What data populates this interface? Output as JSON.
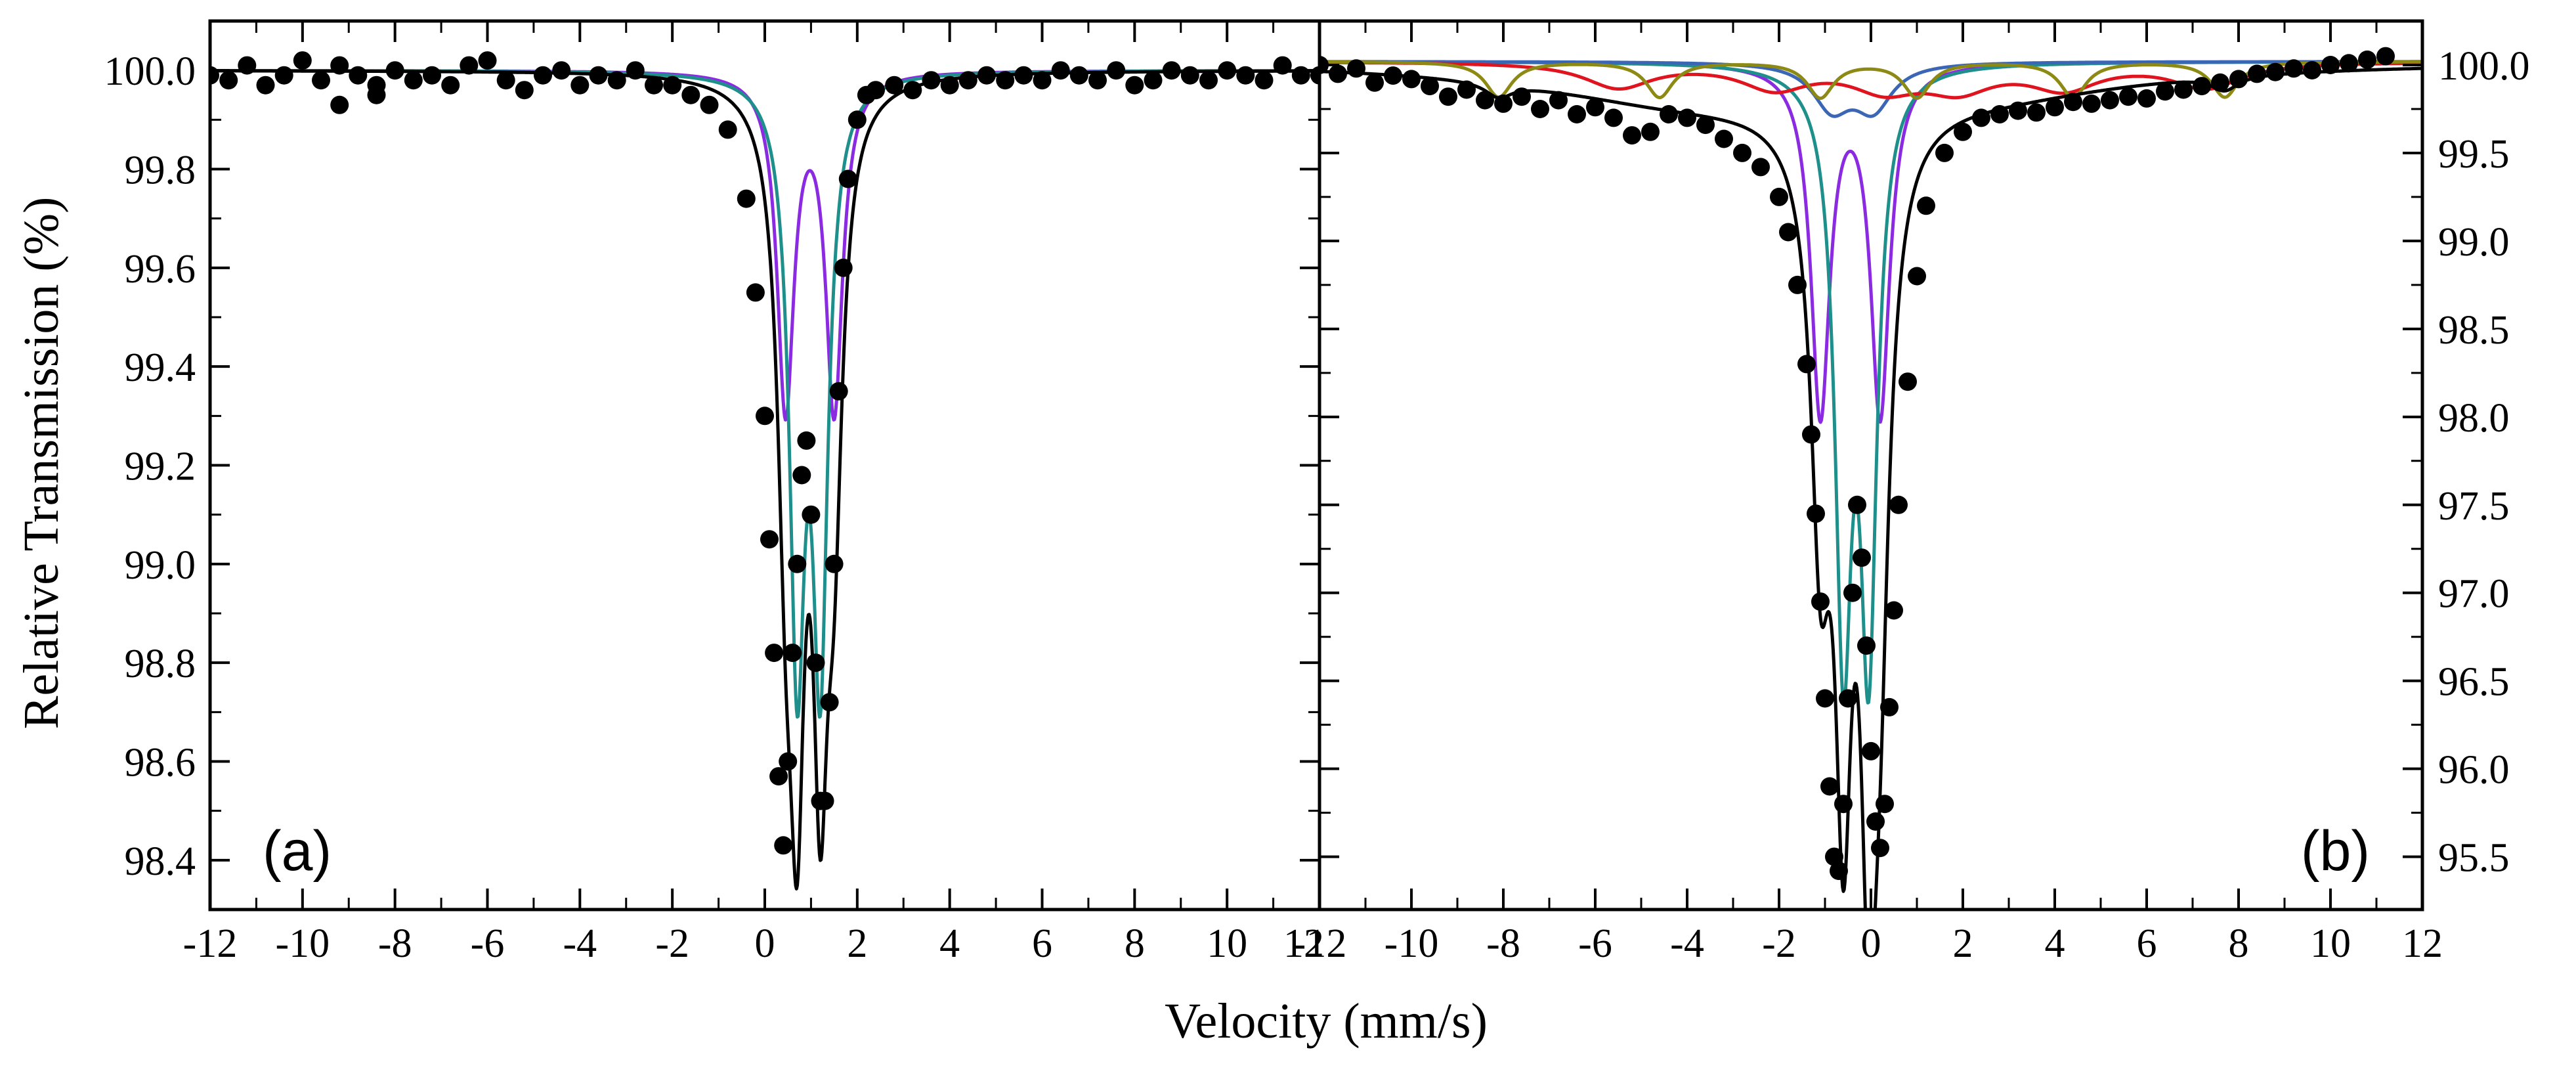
{
  "figure": {
    "shared_xlabel": "Velocity (mm/s)",
    "ylabel": "Relative Transmission (%)"
  },
  "colors": {
    "data": "#000000",
    "envelope": "#000000",
    "doublet_purple": "#8a2be2",
    "doublet_teal": "#1f8f8c",
    "doublet_blue": "#3a66b5",
    "sextet_red": "#e0141e",
    "sextet_olive": "#8c8a14"
  },
  "chart_data": [
    {
      "type": "scatter",
      "panel": "(a)",
      "title": "",
      "xlabel": "Velocity (mm/s)",
      "ylabel": "Relative Transmission (%)",
      "xlim": [
        -12,
        12
      ],
      "ylim": [
        98.3,
        100.1
      ],
      "x_ticks": [
        -12,
        -10,
        -8,
        -6,
        -4,
        -2,
        0,
        2,
        4,
        6,
        8,
        10,
        12
      ],
      "x_tick_labels": [
        "-12",
        "-10",
        "-8",
        "-6",
        "-4",
        "-2",
        "0",
        "2",
        "4",
        "6",
        "8",
        "10",
        "12"
      ],
      "y_ticks": [
        98.4,
        98.6,
        98.8,
        99.0,
        99.2,
        99.4,
        99.6,
        99.8,
        100.0
      ],
      "y_tick_labels": [
        "98.4",
        "98.6",
        "98.8",
        "99.0",
        "99.2",
        "99.4",
        "99.6",
        "99.8",
        "100.0"
      ],
      "y_axis_side": "left",
      "grid": false,
      "experimental_data": {
        "name": "Experimental",
        "x": [
          -12.0,
          -11.6,
          -11.2,
          -10.8,
          -10.4,
          -10.0,
          -9.6,
          -9.2,
          -8.8,
          -8.4,
          -8.0,
          -7.6,
          -7.2,
          -6.8,
          -6.4,
          -6.0,
          -5.6,
          -5.2,
          -4.8,
          -4.4,
          -4.0,
          -3.6,
          -3.2,
          -2.8,
          -2.4,
          -2.0,
          -1.6,
          -1.2,
          -0.8,
          -0.4,
          -0.2,
          0.0,
          0.1,
          0.2,
          0.3,
          0.4,
          0.5,
          0.6,
          0.7,
          0.8,
          0.9,
          1.0,
          1.1,
          1.2,
          1.3,
          1.4,
          1.5,
          1.6,
          1.7,
          1.8,
          2.0,
          2.2,
          2.4,
          2.8,
          3.2,
          3.6,
          4.0,
          4.4,
          4.8,
          5.2,
          5.6,
          6.0,
          6.4,
          6.8,
          7.2,
          7.6,
          8.0,
          8.4,
          8.8,
          9.2,
          9.6,
          10.0,
          10.4,
          10.8,
          11.2,
          11.6,
          12.0,
          -9.2,
          -8.4
        ],
        "y": [
          99.99,
          99.98,
          100.01,
          99.97,
          99.99,
          100.02,
          99.98,
          100.01,
          99.99,
          99.97,
          100.0,
          99.98,
          99.99,
          99.97,
          100.01,
          100.02,
          99.98,
          99.96,
          99.99,
          100.0,
          99.97,
          99.99,
          99.98,
          100.0,
          99.97,
          99.97,
          99.95,
          99.93,
          99.88,
          99.74,
          99.55,
          99.3,
          99.05,
          98.82,
          98.57,
          98.43,
          98.6,
          98.82,
          99.0,
          99.18,
          99.25,
          99.1,
          98.8,
          98.52,
          98.52,
          98.72,
          99.0,
          99.35,
          99.6,
          99.78,
          99.9,
          99.95,
          99.96,
          99.97,
          99.96,
          99.98,
          99.97,
          99.98,
          99.99,
          99.98,
          99.99,
          99.98,
          100.0,
          99.99,
          99.98,
          100.0,
          99.97,
          99.98,
          100.0,
          99.99,
          99.98,
          100.0,
          99.99,
          99.98,
          100.01,
          99.99,
          99.99,
          99.93,
          99.95
        ]
      },
      "components": [
        {
          "name": "Doublet (purple)",
          "kind": "doublet",
          "color": "#8a2be2",
          "centers": [
            0.45,
            1.5
          ],
          "hwhm": 0.22,
          "depth": 0.68,
          "baseline": 100.0
        },
        {
          "name": "Doublet (teal)",
          "kind": "doublet",
          "color": "#1f8f8c",
          "centers": [
            0.7,
            1.2
          ],
          "hwhm": 0.2,
          "depth": 1.15,
          "baseline": 100.0
        },
        {
          "name": "Fit envelope",
          "kind": "envelope",
          "color": "#000000",
          "centers": [
            0.45,
            0.7,
            1.2,
            1.5
          ],
          "hwhm": [
            0.22,
            0.2,
            0.2,
            0.22
          ],
          "depth": [
            0.68,
            1.15,
            1.15,
            0.68
          ],
          "baseline": 100.0
        }
      ],
      "annotation": "(a)"
    },
    {
      "type": "scatter",
      "panel": "(b)",
      "title": "",
      "xlabel": "Velocity (mm/s)",
      "ylabel": "",
      "xlim": [
        -12,
        12
      ],
      "ylim": [
        95.2,
        100.25
      ],
      "x_ticks": [
        -12,
        -10,
        -8,
        -6,
        -4,
        -2,
        0,
        2,
        4,
        6,
        8,
        10,
        12
      ],
      "x_tick_labels": [
        "-12",
        "-10",
        "-8",
        "-6",
        "-4",
        "-2",
        "0",
        "2",
        "4",
        "6",
        "8",
        "10",
        "12"
      ],
      "y_ticks": [
        95.5,
        96.0,
        96.5,
        97.0,
        97.5,
        98.0,
        98.5,
        99.0,
        99.5,
        100.0
      ],
      "y_tick_labels": [
        "95.5",
        "96.0",
        "96.5",
        "97.0",
        "97.5",
        "98.0",
        "98.5",
        "99.0",
        "99.5",
        "100.0"
      ],
      "y_axis_side": "right",
      "grid": false,
      "experimental_data": {
        "name": "Experimental",
        "x": [
          -12.0,
          -11.6,
          -11.2,
          -10.8,
          -10.4,
          -10.0,
          -9.6,
          -9.2,
          -8.8,
          -8.4,
          -8.0,
          -7.6,
          -7.2,
          -6.8,
          -6.4,
          -6.0,
          -5.6,
          -5.2,
          -4.8,
          -4.4,
          -4.0,
          -3.6,
          -3.2,
          -2.8,
          -2.4,
          -2.0,
          -1.8,
          -1.6,
          -1.4,
          -1.3,
          -1.2,
          -1.1,
          -1.0,
          -0.9,
          -0.8,
          -0.7,
          -0.6,
          -0.5,
          -0.4,
          -0.3,
          -0.2,
          -0.1,
          0.0,
          0.1,
          0.2,
          0.3,
          0.4,
          0.5,
          0.6,
          0.8,
          1.0,
          1.2,
          1.6,
          2.0,
          2.4,
          2.8,
          3.2,
          3.6,
          4.0,
          4.4,
          4.8,
          5.2,
          5.6,
          6.0,
          6.4,
          6.8,
          7.2,
          7.6,
          8.0,
          8.4,
          8.8,
          9.2,
          9.6,
          10.0,
          10.4,
          10.8,
          11.2
        ],
        "y": [
          100.0,
          99.95,
          99.98,
          99.9,
          99.94,
          99.92,
          99.88,
          99.82,
          99.86,
          99.8,
          99.78,
          99.82,
          99.75,
          99.8,
          99.72,
          99.76,
          99.7,
          99.6,
          99.62,
          99.72,
          99.7,
          99.66,
          99.58,
          99.5,
          99.42,
          99.25,
          99.05,
          98.75,
          98.3,
          97.9,
          97.45,
          96.95,
          96.4,
          95.9,
          95.5,
          95.42,
          95.8,
          96.4,
          97.0,
          97.5,
          97.2,
          96.7,
          96.1,
          95.7,
          95.55,
          95.8,
          96.35,
          96.9,
          97.5,
          98.2,
          98.8,
          99.2,
          99.5,
          99.62,
          99.7,
          99.72,
          99.74,
          99.73,
          99.76,
          99.79,
          99.78,
          99.8,
          99.82,
          99.81,
          99.85,
          99.86,
          99.88,
          99.9,
          99.92,
          99.95,
          99.96,
          99.98,
          99.97,
          100.0,
          100.01,
          100.03,
          100.05
        ]
      },
      "components": [
        {
          "name": "Doublet (purple)",
          "kind": "doublet",
          "color": "#8a2be2",
          "centers": [
            -1.1,
            0.2
          ],
          "hwhm": 0.25,
          "depth": 1.98,
          "baseline": 100.02
        },
        {
          "name": "Doublet (teal)",
          "kind": "doublet",
          "color": "#1f8f8c",
          "centers": [
            -0.6,
            -0.05
          ],
          "hwhm": 0.22,
          "depth": 3.2,
          "baseline": 100.02
        },
        {
          "name": "Doublet (blue)",
          "kind": "doublet",
          "color": "#3a66b5",
          "centers": [
            -0.85,
            0.05
          ],
          "hwhm": 0.5,
          "depth": 0.25,
          "baseline": 100.02
        },
        {
          "name": "Sextet (red)",
          "kind": "sextet",
          "color": "#e0141e",
          "centers": [
            -5.5,
            -2.1,
            0.3,
            1.9,
            4.2,
            7.3
          ],
          "hwhm": 0.9,
          "depth": 0.14,
          "baseline": 100.02
        },
        {
          "name": "Sextet (olive)",
          "kind": "sextet",
          "color": "#8c8a14",
          "centers": [
            -8.1,
            -4.6,
            -1.1,
            1.0,
            4.4,
            7.7
          ],
          "hwhm": 0.35,
          "depth": 0.2,
          "baseline": 100.02
        },
        {
          "name": "Fit envelope",
          "kind": "envelope",
          "color": "#000000",
          "centers": [
            -1.1,
            0.2,
            -0.6,
            -0.05,
            -0.85,
            0.05,
            -4.0,
            2.5,
            -8.1,
            7.7
          ],
          "hwhm": [
            0.25,
            0.25,
            0.22,
            0.22,
            0.5,
            0.5,
            4.0,
            4.0,
            0.35,
            0.35
          ],
          "depth": [
            1.98,
            1.98,
            3.2,
            3.2,
            0.25,
            0.25,
            0.2,
            0.15,
            0.08,
            0.08
          ],
          "baseline": 100.02
        }
      ],
      "annotation": "(b)"
    }
  ]
}
